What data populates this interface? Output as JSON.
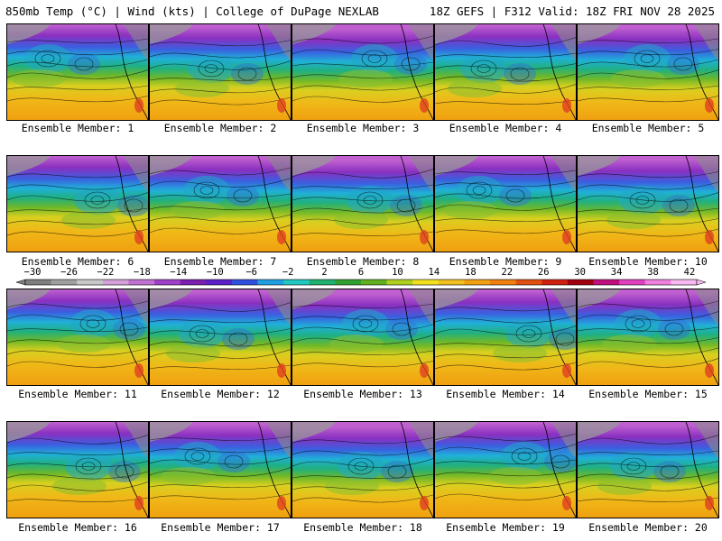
{
  "header": {
    "title_left": "850mb Temp (°C) | Wind (kts) | College of DuPage NEXLAB",
    "title_right": "18Z GEFS | F312 Valid: 18Z FRI NOV 28 2025"
  },
  "colorbar": {
    "ticks": [
      "−30",
      "−26",
      "−22",
      "−18",
      "−14",
      "−10",
      "−6",
      "−2",
      "2",
      "6",
      "10",
      "14",
      "18",
      "22",
      "26",
      "30",
      "34",
      "38",
      "42"
    ],
    "colors": [
      "#7f7f7f",
      "#a0a0a0",
      "#c8c8c8",
      "#d4a0d8",
      "#c070d0",
      "#a040c8",
      "#7a1fb0",
      "#5a20c8",
      "#3050e0",
      "#20a0e0",
      "#20c8c0",
      "#20b070",
      "#30a030",
      "#60b020",
      "#b0d020",
      "#f0e020",
      "#f0c020",
      "#f0a010",
      "#f08010",
      "#e05010",
      "#d02010",
      "#a00010",
      "#c01080",
      "#e040c0",
      "#f080e0",
      "#f8b8f0"
    ]
  },
  "members": [
    {
      "label": "Ensemble Member: 1"
    },
    {
      "label": "Ensemble Member: 2"
    },
    {
      "label": "Ensemble Member: 3"
    },
    {
      "label": "Ensemble Member: 4"
    },
    {
      "label": "Ensemble Member: 5"
    },
    {
      "label": "Ensemble Member: 6"
    },
    {
      "label": "Ensemble Member: 7"
    },
    {
      "label": "Ensemble Member: 8"
    },
    {
      "label": "Ensemble Member: 9"
    },
    {
      "label": "Ensemble Member: 10"
    },
    {
      "label": "Ensemble Member: 11"
    },
    {
      "label": "Ensemble Member: 12"
    },
    {
      "label": "Ensemble Member: 13"
    },
    {
      "label": "Ensemble Member: 14"
    },
    {
      "label": "Ensemble Member: 15"
    },
    {
      "label": "Ensemble Member: 16"
    },
    {
      "label": "Ensemble Member: 17"
    },
    {
      "label": "Ensemble Member: 18"
    },
    {
      "label": "Ensemble Member: 19"
    },
    {
      "label": "Ensemble Member: 20"
    }
  ]
}
